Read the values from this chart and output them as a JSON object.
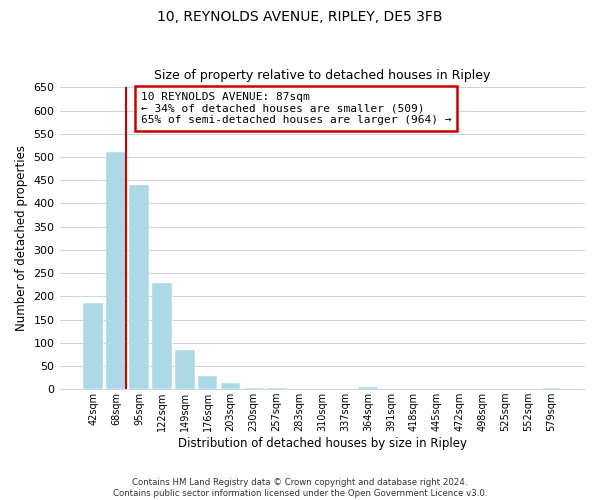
{
  "title": "10, REYNOLDS AVENUE, RIPLEY, DE5 3FB",
  "subtitle": "Size of property relative to detached houses in Ripley",
  "xlabel": "Distribution of detached houses by size in Ripley",
  "ylabel": "Number of detached properties",
  "bar_labels": [
    "42sqm",
    "68sqm",
    "95sqm",
    "122sqm",
    "149sqm",
    "176sqm",
    "203sqm",
    "230sqm",
    "257sqm",
    "283sqm",
    "310sqm",
    "337sqm",
    "364sqm",
    "391sqm",
    "418sqm",
    "445sqm",
    "472sqm",
    "498sqm",
    "525sqm",
    "552sqm",
    "579sqm"
  ],
  "bar_values": [
    185,
    510,
    440,
    228,
    85,
    28,
    13,
    3,
    2,
    1,
    0,
    0,
    4,
    0,
    0,
    0,
    0,
    0,
    0,
    0,
    2
  ],
  "bar_color": "#add8e6",
  "highlight_index": 1,
  "highlight_color": "#cc0000",
  "ylim": [
    0,
    650
  ],
  "yticks": [
    0,
    50,
    100,
    150,
    200,
    250,
    300,
    350,
    400,
    450,
    500,
    550,
    600,
    650
  ],
  "annotation_lines": [
    "10 REYNOLDS AVENUE: 87sqm",
    "← 34% of detached houses are smaller (509)",
    "65% of semi-detached houses are larger (964) →"
  ],
  "footer_lines": [
    "Contains HM Land Registry data © Crown copyright and database right 2024.",
    "Contains public sector information licensed under the Open Government Licence v3.0."
  ],
  "background_color": "#ffffff",
  "grid_color": "#c8d4e0"
}
